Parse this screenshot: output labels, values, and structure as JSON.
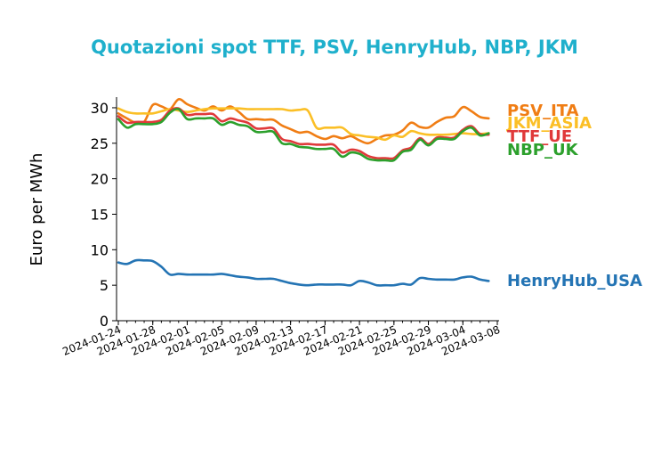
{
  "chart_data": {
    "type": "line",
    "title": "Quotazioni spot TTF, PSV, HenryHub, NBP, JKM",
    "xlabel": "",
    "ylabel": "Euro per MWh",
    "ylim": [
      0,
      31.5
    ],
    "yticks": [
      "0",
      "5",
      "10",
      "15",
      "20",
      "25",
      "30"
    ],
    "xlim": [
      "2024-01-24",
      "2024-03-08"
    ],
    "xticks": [
      "2024-01-24",
      "2024-01-28",
      "2024-02-01",
      "2024-02-05",
      "2024-02-09",
      "2024-02-13",
      "2024-02-17",
      "2024-02-21",
      "2024-02-25",
      "2024-02-29",
      "2024-03-04",
      "2024-03-08"
    ],
    "grid": false,
    "legend": "labels at line ends, right",
    "colors": {
      "title": "#1fb0cc",
      "PSV_ITA": "#f07d14",
      "JKM_ASIA": "#fbbf26",
      "TTF_UE": "#e0393a",
      "NBP_UK": "#2ca02c",
      "HenryHub_USA": "#2474b4"
    },
    "series": [
      {
        "name": "PSV_ITA",
        "points": [
          [
            "2024-01-24",
            29.2
          ],
          [
            "2024-01-25",
            28.5
          ],
          [
            "2024-01-26",
            27.9
          ],
          [
            "2024-01-27",
            28.0
          ],
          [
            "2024-01-28",
            30.4
          ],
          [
            "2024-01-29",
            30.2
          ],
          [
            "2024-01-30",
            29.8
          ],
          [
            "2024-01-31",
            31.2
          ],
          [
            "2024-02-01",
            30.5
          ],
          [
            "2024-02-02",
            30.0
          ],
          [
            "2024-02-03",
            29.6
          ],
          [
            "2024-02-04",
            30.2
          ],
          [
            "2024-02-05",
            29.6
          ],
          [
            "2024-02-06",
            30.2
          ],
          [
            "2024-02-07",
            29.4
          ],
          [
            "2024-02-08",
            28.4
          ],
          [
            "2024-02-09",
            28.4
          ],
          [
            "2024-02-10",
            28.3
          ],
          [
            "2024-02-11",
            28.3
          ],
          [
            "2024-02-12",
            27.5
          ],
          [
            "2024-02-13",
            27.0
          ],
          [
            "2024-02-14",
            26.5
          ],
          [
            "2024-02-15",
            26.6
          ],
          [
            "2024-02-16",
            26.0
          ],
          [
            "2024-02-17",
            25.6
          ],
          [
            "2024-02-18",
            26.0
          ],
          [
            "2024-02-19",
            25.7
          ],
          [
            "2024-02-20",
            26.0
          ],
          [
            "2024-02-21",
            25.4
          ],
          [
            "2024-02-22",
            25.0
          ],
          [
            "2024-02-23",
            25.6
          ],
          [
            "2024-02-24",
            26.1
          ],
          [
            "2024-02-25",
            26.2
          ],
          [
            "2024-02-26",
            26.8
          ],
          [
            "2024-02-27",
            27.9
          ],
          [
            "2024-02-28",
            27.3
          ],
          [
            "2024-02-29",
            27.2
          ],
          [
            "2024-03-01",
            28.0
          ],
          [
            "2024-03-02",
            28.6
          ],
          [
            "2024-03-03",
            28.8
          ],
          [
            "2024-03-04",
            30.1
          ],
          [
            "2024-03-05",
            29.5
          ],
          [
            "2024-03-06",
            28.7
          ],
          [
            "2024-03-07",
            28.5
          ]
        ]
      },
      {
        "name": "JKM_ASIA",
        "points": [
          [
            "2024-01-24",
            29.9
          ],
          [
            "2024-01-25",
            29.4
          ],
          [
            "2024-01-26",
            29.2
          ],
          [
            "2024-01-27",
            29.2
          ],
          [
            "2024-01-28",
            29.2
          ],
          [
            "2024-01-29",
            29.5
          ],
          [
            "2024-01-30",
            29.8
          ],
          [
            "2024-01-31",
            29.6
          ],
          [
            "2024-02-01",
            29.4
          ],
          [
            "2024-02-02",
            29.6
          ],
          [
            "2024-02-03",
            29.8
          ],
          [
            "2024-02-04",
            29.9
          ],
          [
            "2024-02-05",
            29.9
          ],
          [
            "2024-02-06",
            29.9
          ],
          [
            "2024-02-07",
            29.9
          ],
          [
            "2024-02-08",
            29.8
          ],
          [
            "2024-02-09",
            29.8
          ],
          [
            "2024-02-10",
            29.8
          ],
          [
            "2024-02-11",
            29.8
          ],
          [
            "2024-02-12",
            29.8
          ],
          [
            "2024-02-13",
            29.6
          ],
          [
            "2024-02-14",
            29.7
          ],
          [
            "2024-02-15",
            29.6
          ],
          [
            "2024-02-16",
            27.2
          ],
          [
            "2024-02-17",
            27.2
          ],
          [
            "2024-02-18",
            27.2
          ],
          [
            "2024-02-19",
            27.2
          ],
          [
            "2024-02-20",
            26.3
          ],
          [
            "2024-02-21",
            26.1
          ],
          [
            "2024-02-22",
            25.9
          ],
          [
            "2024-02-23",
            25.8
          ],
          [
            "2024-02-24",
            25.5
          ],
          [
            "2024-02-25",
            26.1
          ],
          [
            "2024-02-26",
            25.9
          ],
          [
            "2024-02-27",
            26.7
          ],
          [
            "2024-02-28",
            26.4
          ],
          [
            "2024-02-29",
            26.2
          ],
          [
            "2024-03-01",
            26.2
          ],
          [
            "2024-03-02",
            26.2
          ],
          [
            "2024-03-03",
            26.3
          ],
          [
            "2024-03-04",
            26.4
          ],
          [
            "2024-03-05",
            26.3
          ],
          [
            "2024-03-06",
            26.3
          ],
          [
            "2024-03-07",
            26.4
          ]
        ]
      },
      {
        "name": "TTF_UE",
        "points": [
          [
            "2024-01-24",
            28.8
          ],
          [
            "2024-01-25",
            27.9
          ],
          [
            "2024-01-26",
            28.0
          ],
          [
            "2024-01-27",
            28.0
          ],
          [
            "2024-01-28",
            28.0
          ],
          [
            "2024-01-29",
            28.3
          ],
          [
            "2024-01-30",
            29.6
          ],
          [
            "2024-01-31",
            29.9
          ],
          [
            "2024-02-01",
            29.0
          ],
          [
            "2024-02-02",
            29.1
          ],
          [
            "2024-02-03",
            29.1
          ],
          [
            "2024-02-04",
            29.1
          ],
          [
            "2024-02-05",
            28.1
          ],
          [
            "2024-02-06",
            28.5
          ],
          [
            "2024-02-07",
            28.2
          ],
          [
            "2024-02-08",
            27.9
          ],
          [
            "2024-02-09",
            27.1
          ],
          [
            "2024-02-10",
            27.1
          ],
          [
            "2024-02-11",
            27.1
          ],
          [
            "2024-02-12",
            25.6
          ],
          [
            "2024-02-13",
            25.3
          ],
          [
            "2024-02-14",
            24.9
          ],
          [
            "2024-02-15",
            24.9
          ],
          [
            "2024-02-16",
            24.8
          ],
          [
            "2024-02-17",
            24.8
          ],
          [
            "2024-02-18",
            24.8
          ],
          [
            "2024-02-19",
            23.7
          ],
          [
            "2024-02-20",
            24.1
          ],
          [
            "2024-02-21",
            23.9
          ],
          [
            "2024-02-22",
            23.2
          ],
          [
            "2024-02-23",
            22.9
          ],
          [
            "2024-02-24",
            22.9
          ],
          [
            "2024-02-25",
            22.9
          ],
          [
            "2024-02-26",
            24.0
          ],
          [
            "2024-02-27",
            24.4
          ],
          [
            "2024-02-28",
            25.7
          ],
          [
            "2024-02-29",
            24.9
          ],
          [
            "2024-03-01",
            25.8
          ],
          [
            "2024-03-02",
            25.8
          ],
          [
            "2024-03-03",
            25.8
          ],
          [
            "2024-03-04",
            26.9
          ],
          [
            "2024-03-05",
            27.4
          ],
          [
            "2024-03-06",
            26.3
          ],
          [
            "2024-03-07",
            26.2
          ]
        ]
      },
      {
        "name": "NBP_UK",
        "points": [
          [
            "2024-01-24",
            28.4
          ],
          [
            "2024-01-25",
            27.2
          ],
          [
            "2024-01-26",
            27.7
          ],
          [
            "2024-01-27",
            27.7
          ],
          [
            "2024-01-28",
            27.7
          ],
          [
            "2024-01-29",
            28.0
          ],
          [
            "2024-01-30",
            29.3
          ],
          [
            "2024-01-31",
            29.8
          ],
          [
            "2024-02-01",
            28.4
          ],
          [
            "2024-02-02",
            28.5
          ],
          [
            "2024-02-03",
            28.5
          ],
          [
            "2024-02-04",
            28.5
          ],
          [
            "2024-02-05",
            27.6
          ],
          [
            "2024-02-06",
            28.0
          ],
          [
            "2024-02-07",
            27.6
          ],
          [
            "2024-02-08",
            27.4
          ],
          [
            "2024-02-09",
            26.6
          ],
          [
            "2024-02-10",
            26.6
          ],
          [
            "2024-02-11",
            26.6
          ],
          [
            "2024-02-12",
            25.0
          ],
          [
            "2024-02-13",
            24.9
          ],
          [
            "2024-02-14",
            24.5
          ],
          [
            "2024-02-15",
            24.4
          ],
          [
            "2024-02-16",
            24.2
          ],
          [
            "2024-02-17",
            24.2
          ],
          [
            "2024-02-18",
            24.2
          ],
          [
            "2024-02-19",
            23.1
          ],
          [
            "2024-02-20",
            23.7
          ],
          [
            "2024-02-21",
            23.5
          ],
          [
            "2024-02-22",
            22.8
          ],
          [
            "2024-02-23",
            22.6
          ],
          [
            "2024-02-24",
            22.6
          ],
          [
            "2024-02-25",
            22.6
          ],
          [
            "2024-02-26",
            23.8
          ],
          [
            "2024-02-27",
            24.1
          ],
          [
            "2024-02-28",
            25.5
          ],
          [
            "2024-02-29",
            24.7
          ],
          [
            "2024-03-01",
            25.6
          ],
          [
            "2024-03-02",
            25.6
          ],
          [
            "2024-03-03",
            25.6
          ],
          [
            "2024-03-04",
            26.7
          ],
          [
            "2024-03-05",
            27.2
          ],
          [
            "2024-03-06",
            26.1
          ],
          [
            "2024-03-07",
            26.4
          ]
        ]
      },
      {
        "name": "HenryHub_USA",
        "points": [
          [
            "2024-01-24",
            8.2
          ],
          [
            "2024-01-25",
            8.0
          ],
          [
            "2024-01-26",
            8.5
          ],
          [
            "2024-01-27",
            8.5
          ],
          [
            "2024-01-28",
            8.4
          ],
          [
            "2024-01-29",
            7.6
          ],
          [
            "2024-01-30",
            6.5
          ],
          [
            "2024-01-31",
            6.6
          ],
          [
            "2024-02-01",
            6.5
          ],
          [
            "2024-02-02",
            6.5
          ],
          [
            "2024-02-03",
            6.5
          ],
          [
            "2024-02-04",
            6.5
          ],
          [
            "2024-02-05",
            6.6
          ],
          [
            "2024-02-06",
            6.4
          ],
          [
            "2024-02-07",
            6.2
          ],
          [
            "2024-02-08",
            6.1
          ],
          [
            "2024-02-09",
            5.9
          ],
          [
            "2024-02-10",
            5.9
          ],
          [
            "2024-02-11",
            5.9
          ],
          [
            "2024-02-12",
            5.6
          ],
          [
            "2024-02-13",
            5.3
          ],
          [
            "2024-02-14",
            5.1
          ],
          [
            "2024-02-15",
            5.0
          ],
          [
            "2024-02-16",
            5.1
          ],
          [
            "2024-02-17",
            5.1
          ],
          [
            "2024-02-18",
            5.1
          ],
          [
            "2024-02-19",
            5.1
          ],
          [
            "2024-02-20",
            5.0
          ],
          [
            "2024-02-21",
            5.6
          ],
          [
            "2024-02-22",
            5.4
          ],
          [
            "2024-02-23",
            5.0
          ],
          [
            "2024-02-24",
            5.0
          ],
          [
            "2024-02-25",
            5.0
          ],
          [
            "2024-02-26",
            5.2
          ],
          [
            "2024-02-27",
            5.1
          ],
          [
            "2024-02-28",
            6.0
          ],
          [
            "2024-02-29",
            5.9
          ],
          [
            "2024-03-01",
            5.8
          ],
          [
            "2024-03-02",
            5.8
          ],
          [
            "2024-03-03",
            5.8
          ],
          [
            "2024-03-04",
            6.1
          ],
          [
            "2024-03-05",
            6.2
          ],
          [
            "2024-03-06",
            5.8
          ],
          [
            "2024-03-07",
            5.6
          ]
        ]
      }
    ]
  }
}
